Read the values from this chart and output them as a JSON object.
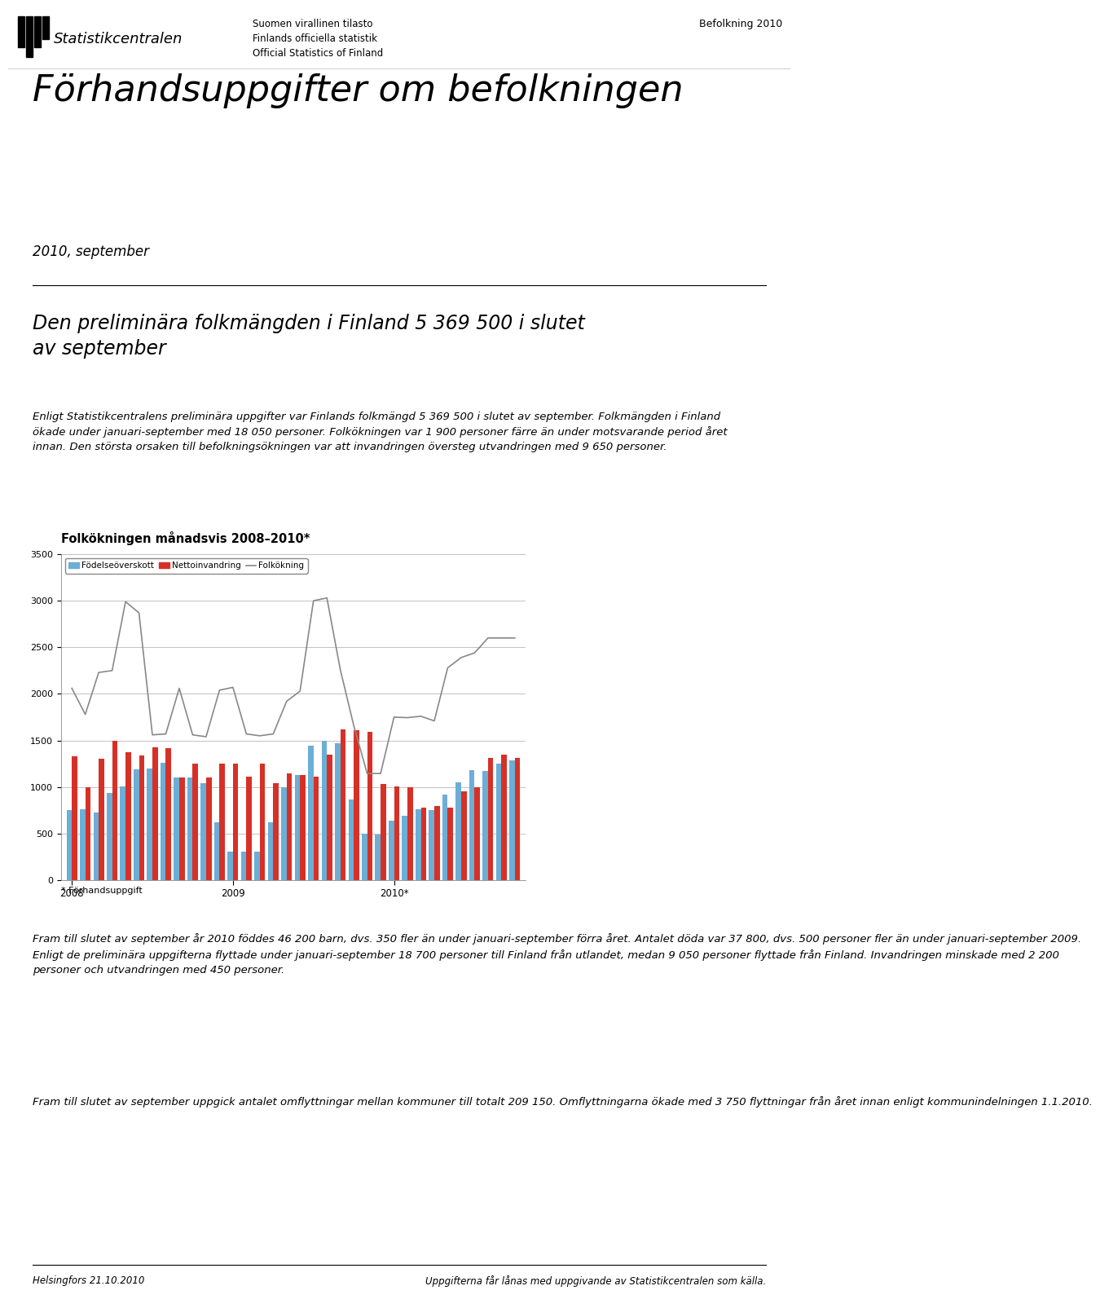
{
  "title": "Folkökningen månadsvis 2008–2010*",
  "footnote": "* Förhandsuppgift",
  "legend_labels": [
    "Födelseöverskott",
    "Nettoinvandring",
    "Folkökning"
  ],
  "bar_color_blue": "#6baed6",
  "bar_color_red": "#d73027",
  "line_color": "#888888",
  "ylim": [
    0,
    3500
  ],
  "yticks": [
    0,
    500,
    1000,
    1500,
    2000,
    2500,
    3000,
    3500
  ],
  "blue_bars": [
    750,
    760,
    730,
    940,
    1010,
    1190,
    1200,
    1260,
    1100,
    1100,
    1040,
    625,
    310,
    310,
    310,
    620,
    1000,
    1130,
    1440,
    1500,
    1470,
    870,
    500,
    490,
    640,
    690,
    760,
    750,
    920,
    1050,
    1180,
    1170,
    1250,
    1290
  ],
  "red_bars": [
    1330,
    1000,
    1300,
    1500,
    1370,
    1340,
    1430,
    1420,
    1100,
    1250,
    1100,
    1250,
    1250,
    1110,
    1250,
    1040,
    1150,
    1130,
    1110,
    1350,
    1620,
    1610,
    1590,
    1030,
    1010,
    1000,
    780,
    800,
    780,
    950,
    1000,
    1310,
    1350,
    1310
  ],
  "line_vals": [
    2060,
    1780,
    2230,
    2250,
    2990,
    2870,
    1560,
    1570,
    2060,
    1560,
    1540,
    2040,
    2070,
    1570,
    1550,
    1570,
    1920,
    2030,
    3000,
    3030,
    2260,
    1660,
    1145,
    1145,
    1750,
    1745,
    1760,
    1710,
    2280,
    2390,
    2440,
    2600,
    2600,
    2600
  ],
  "header_line1": "Suomen virallinen tilasto",
  "header_line2": "Finlands officiella statistik",
  "header_line3": "Official Statistics of Finland",
  "header_right": "Befolkning 2010",
  "main_title": "Förhandsuppgifter om befolkningen",
  "subtitle": "2010, september",
  "para1": "Den preliminära folkmängden i Finland 5 369 500 i slutet\nav september",
  "para2_line1": "Enligt Statistikcentralens preliminära uppgifter var Finlands folkmängd 5 369 500 i slutet av september. Folkmängden i Finland",
  "para2_line2": "ökade under januari-september med 18 050 personer. Folkökningen var 1 900 personer färre än under motsvarande period året",
  "para2_line3": "innan. Den största orsaken till befolkningsökningen var att invandringen översteg utvandringen med 9 650 personer.",
  "para3": "Fram till slutet av september år 2010 föddes 46 200 barn, dvs. 350 fler än under januari-september förra året. Antalet döda var 37 800, dvs. 500 personer fler än under januari-september 2009. Enligt de preliminära uppgifterna flyttade under januari-september 18 700 personer till Finland från utlandet, medan 9 050 personer flyttade från Finland. Invandringen minskade med 2 200 personer och utvandringen med 450 personer.",
  "para4": "Fram till slutet av september uppgick antalet omflyttningar mellan kommuner till totalt 209 150. Omflyttningarna ökade med 3 750 flyttningar från året innan enligt kommunindelningen 1.1.2010.",
  "footer_left": "Helsingfors 21.10.2010",
  "footer_right": "Uppgifterna får lånas med uppgivande av Statistikcentralen som källa.",
  "bg_color": "#ffffff"
}
